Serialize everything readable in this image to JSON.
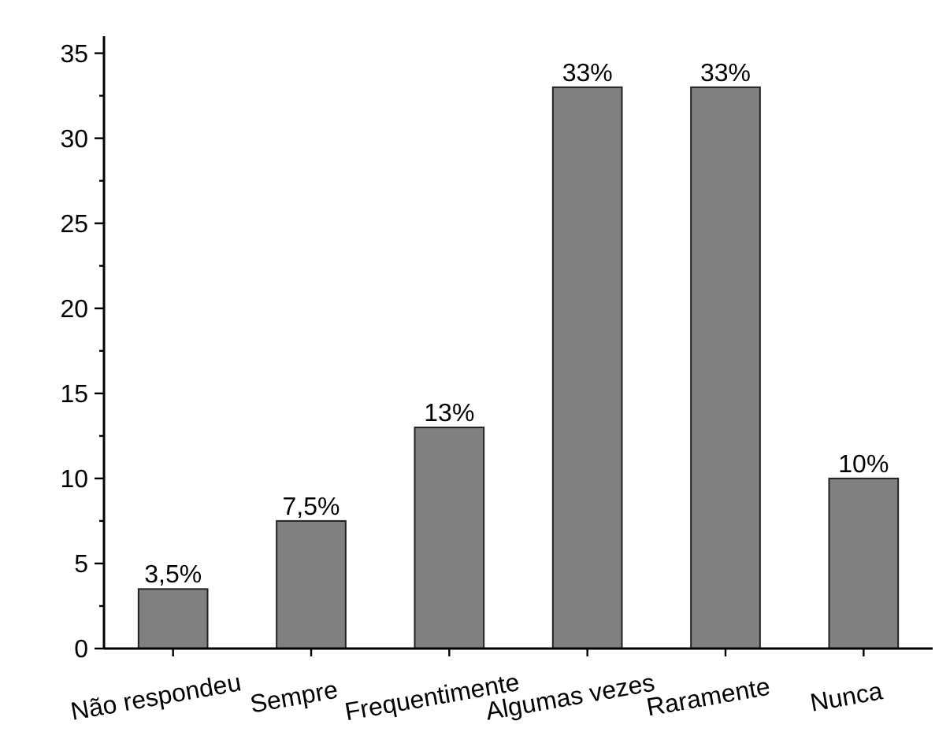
{
  "chart_data": {
    "type": "bar",
    "categories": [
      "Não respondeu",
      "Sempre",
      "Frequentimente",
      "Algumas vezes",
      "Raramente",
      "Nunca"
    ],
    "values": [
      3.5,
      7.5,
      13,
      33,
      33,
      10
    ],
    "value_labels": [
      "3,5%",
      "7,5%",
      "13%",
      "33%",
      "33%",
      "10%"
    ],
    "color": "#808080",
    "ylim": [
      0,
      36
    ],
    "yticks": [
      0,
      {
        "value": 2.5,
        "label": null
      },
      5,
      {
        "value": 7.5,
        "label": null
      },
      10,
      {
        "value": 12.5,
        "label": null
      },
      15,
      {
        "value": 17.5,
        "label": null
      },
      20,
      {
        "value": 22.5,
        "label": null
      },
      25,
      {
        "value": 27.5,
        "label": null
      },
      30,
      {
        "value": 32.5,
        "label": null
      },
      35
    ],
    "grid": false
  }
}
